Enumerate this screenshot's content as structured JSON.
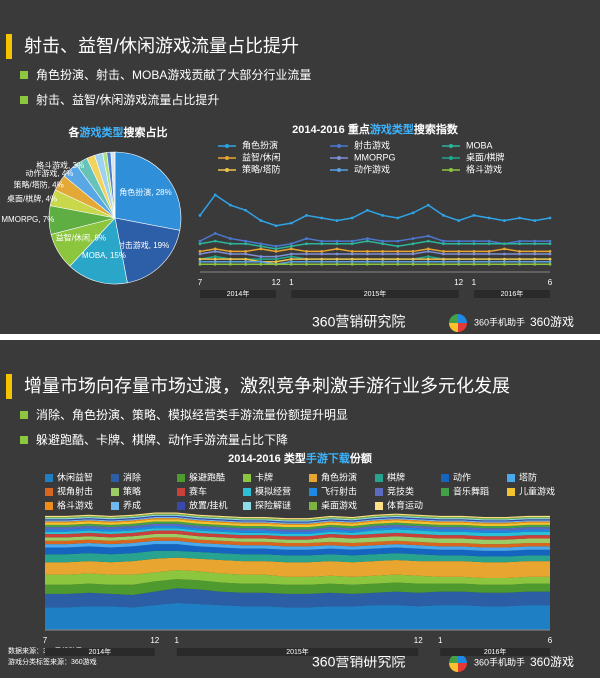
{
  "slides": [
    {
      "title": "射击、益智/休闲游戏流量占比提升",
      "bullets": [
        "角色扮演、射击、MOBA游戏贡献了大部分行业流量",
        "射击、益智/休闲游戏流量占比提升"
      ]
    },
    {
      "title": "增量市场向存量市场过渡，激烈竞争刺激手游行业多元化发展",
      "bullets": [
        "消除、角色扮演、策略、模拟经营类手游流量份额提升明显",
        "躲避跑酷、卡牌、棋牌、动作手游流量占比下降"
      ]
    }
  ],
  "chart_data": [
    {
      "type": "pie",
      "title_parts": [
        "各",
        "游戏类型",
        "搜索占比"
      ],
      "categories": [
        "角色扮演",
        "射击游戏",
        "MOBA",
        "益智/休闲",
        "MMORPG",
        "桌面/棋牌",
        "策略/塔防",
        "动作游戏",
        "格斗游戏",
        null,
        null,
        null,
        null,
        null
      ],
      "values": [
        28,
        19,
        15,
        9,
        7,
        4,
        4,
        4,
        3,
        2,
        2,
        1,
        1,
        1
      ],
      "value_labels": [
        "角色扮演, 28%",
        "射击游戏, 19%",
        "MOBA, 15%",
        "益智/休闲, 9%",
        "MMORPG, 7%",
        "桌面/棋牌, 4%",
        "策略/塔防, 4%",
        "动作游戏, 4%",
        "格斗游戏, 3%",
        null,
        null,
        null,
        null,
        null
      ],
      "colors": [
        "#2f8fd8",
        "#2d5ea8",
        "#2aa6c9",
        "#8cc63f",
        "#5fae43",
        "#c8d84a",
        "#e3a835",
        "#5aa7e6",
        "#67c3b9",
        "#f2d35c",
        "#9fd1f0",
        "#b0e07a",
        "#4e7fd1",
        "#d8e6f0"
      ]
    },
    {
      "type": "line",
      "title_parts": [
        "2014-2016 重点",
        "游戏类型",
        "搜索指数"
      ],
      "categories": [
        "7",
        null,
        null,
        null,
        null,
        "12",
        "1",
        null,
        null,
        null,
        null,
        null,
        null,
        null,
        null,
        null,
        null,
        "12",
        "1",
        null,
        null,
        null,
        null,
        "6"
      ],
      "years": [
        "2014年",
        "2015年",
        "2016年"
      ],
      "ylim": [
        0,
        35
      ],
      "series": [
        {
          "name": "角色扮演",
          "color": "#2fa3e6",
          "values": [
            22,
            30,
            26,
            24,
            20,
            18,
            19,
            22,
            21,
            20,
            21,
            24,
            22,
            21,
            23,
            26,
            22,
            20,
            22,
            21,
            20,
            21,
            20,
            21
          ]
        },
        {
          "name": "射击游戏",
          "color": "#4a78d0",
          "values": [
            12,
            15,
            13,
            12,
            11,
            10,
            11,
            13,
            12,
            12,
            12,
            13,
            12,
            12,
            13,
            14,
            12,
            12,
            12,
            12,
            11,
            12,
            12,
            12
          ]
        },
        {
          "name": "MOBA",
          "color": "#2bb59c",
          "values": [
            11,
            12,
            11,
            11,
            10,
            9,
            10,
            11,
            11,
            11,
            11,
            12,
            11,
            10,
            11,
            12,
            11,
            11,
            11,
            11,
            11,
            11,
            11,
            11
          ]
        },
        {
          "name": "益智/休闲",
          "color": "#e8a530",
          "values": [
            8,
            9,
            8,
            8,
            9,
            8,
            9,
            8,
            8,
            9,
            8,
            8,
            8,
            8,
            8,
            9,
            8,
            8,
            8,
            8,
            9,
            8,
            8,
            8
          ]
        },
        {
          "name": "MMORPG",
          "color": "#7d8fd6",
          "values": [
            7,
            8,
            7,
            7,
            6,
            6,
            7,
            7,
            7,
            7,
            7,
            7,
            7,
            7,
            7,
            8,
            7,
            7,
            7,
            7,
            7,
            7,
            7,
            7
          ]
        },
        {
          "name": "桌面/棋牌",
          "color": "#1fa88f",
          "values": [
            5,
            6,
            5,
            5,
            5,
            5,
            6,
            5,
            5,
            5,
            5,
            5,
            5,
            5,
            5,
            6,
            5,
            5,
            5,
            5,
            5,
            5,
            5,
            5
          ]
        },
        {
          "name": "策略/塔防",
          "color": "#f0c24a",
          "values": [
            5,
            5,
            5,
            5,
            4,
            4,
            5,
            5,
            5,
            5,
            5,
            5,
            5,
            5,
            5,
            5,
            5,
            5,
            5,
            5,
            5,
            5,
            5,
            5
          ]
        },
        {
          "name": "动作游戏",
          "color": "#5aa0e0",
          "values": [
            4,
            4,
            4,
            4,
            4,
            3,
            4,
            4,
            4,
            4,
            4,
            4,
            4,
            4,
            4,
            4,
            4,
            4,
            4,
            4,
            4,
            4,
            4,
            4
          ]
        },
        {
          "name": "格斗游戏",
          "color": "#8cc63f",
          "values": [
            3,
            3,
            3,
            3,
            3,
            3,
            3,
            3,
            3,
            3,
            3,
            3,
            3,
            3,
            3,
            3,
            3,
            3,
            3,
            3,
            3,
            3,
            3,
            3
          ]
        }
      ]
    },
    {
      "type": "area",
      "title_parts": [
        "2014-2016 类型",
        "手游下载",
        "份额"
      ],
      "categories": [
        "7",
        null,
        null,
        null,
        null,
        "12",
        "1",
        null,
        null,
        null,
        null,
        null,
        null,
        null,
        null,
        null,
        null,
        "12",
        "1",
        null,
        null,
        null,
        null,
        "6"
      ],
      "years": [
        "2014年",
        "2015年",
        "2016年"
      ],
      "ylim": [
        0,
        100
      ],
      "series": [
        {
          "name": "休闲益智",
          "color": "#1f7fc4",
          "values": [
            20,
            20,
            21,
            21,
            20,
            22,
            24,
            23,
            22,
            21,
            21,
            20,
            20,
            21,
            21,
            22,
            22,
            21,
            22,
            22,
            21,
            21,
            22,
            22
          ]
        },
        {
          "name": "消除",
          "color": "#2c5ea5",
          "values": [
            12,
            12,
            12,
            11,
            11,
            12,
            13,
            13,
            12,
            12,
            12,
            12,
            12,
            12,
            11,
            11,
            12,
            12,
            12,
            12,
            12,
            12,
            12,
            12
          ]
        },
        {
          "name": "躲避跑酷",
          "color": "#4f9a2f",
          "values": [
            8,
            8,
            8,
            8,
            9,
            9,
            8,
            8,
            8,
            8,
            8,
            8,
            8,
            8,
            8,
            8,
            8,
            8,
            7,
            7,
            7,
            7,
            7,
            7
          ]
        },
        {
          "name": "卡牌",
          "color": "#8cc63f",
          "values": [
            9,
            9,
            9,
            9,
            9,
            8,
            8,
            8,
            8,
            8,
            8,
            7,
            7,
            7,
            7,
            7,
            7,
            7,
            6,
            6,
            6,
            6,
            6,
            6
          ]
        },
        {
          "name": "角色扮演",
          "color": "#e8a530",
          "values": [
            11,
            11,
            11,
            11,
            12,
            12,
            11,
            11,
            12,
            12,
            12,
            13,
            13,
            13,
            13,
            13,
            13,
            13,
            14,
            14,
            14,
            14,
            14,
            14
          ]
        },
        {
          "name": "棋牌",
          "color": "#27a38f",
          "values": [
            7,
            7,
            7,
            7,
            7,
            7,
            6,
            6,
            6,
            6,
            6,
            6,
            6,
            6,
            6,
            6,
            6,
            6,
            5,
            5,
            5,
            5,
            5,
            5
          ]
        },
        {
          "name": "动作",
          "color": "#1565c0",
          "values": [
            6,
            6,
            6,
            6,
            6,
            6,
            6,
            5,
            5,
            5,
            5,
            5,
            5,
            5,
            5,
            5,
            5,
            5,
            5,
            5,
            5,
            5,
            5,
            5
          ]
        },
        {
          "name": "塔防",
          "color": "#4aa8ec",
          "values": [
            3,
            3,
            3,
            3,
            3,
            3,
            3,
            3,
            3,
            3,
            3,
            3,
            3,
            3,
            3,
            3,
            3,
            3,
            3,
            3,
            3,
            3,
            3,
            3
          ]
        },
        {
          "name": "视角射击",
          "color": "#d9661f",
          "values": [
            3,
            3,
            3,
            3,
            3,
            3,
            3,
            3,
            3,
            3,
            3,
            3,
            3,
            3,
            3,
            3,
            3,
            3,
            3,
            3,
            3,
            3,
            3,
            3
          ]
        },
        {
          "name": "策略",
          "color": "#9ccc65",
          "values": [
            3,
            3,
            3,
            3,
            3,
            3,
            3,
            3,
            3,
            3,
            3,
            3,
            3,
            4,
            4,
            4,
            4,
            4,
            4,
            4,
            4,
            4,
            4,
            4
          ]
        },
        {
          "name": "赛车",
          "color": "#c9413a",
          "values": [
            3,
            3,
            3,
            3,
            3,
            3,
            3,
            3,
            3,
            3,
            3,
            3,
            3,
            3,
            3,
            3,
            3,
            3,
            3,
            3,
            3,
            3,
            3,
            3
          ]
        },
        {
          "name": "模拟经营",
          "color": "#2cc0d6",
          "values": [
            2,
            2,
            2,
            2,
            2,
            2,
            2,
            2,
            2,
            2,
            2,
            2,
            2,
            2,
            2,
            3,
            3,
            3,
            3,
            3,
            3,
            3,
            3,
            3
          ]
        },
        {
          "name": "飞行射击",
          "color": "#1e88e5",
          "values": [
            2,
            2,
            2,
            2,
            2,
            2,
            2,
            2,
            2,
            2,
            2,
            2,
            2,
            2,
            2,
            2,
            2,
            2,
            2,
            2,
            2,
            2,
            2,
            2
          ]
        },
        {
          "name": "竞技类",
          "color": "#5c6bc0",
          "values": [
            2,
            2,
            2,
            2,
            2,
            2,
            2,
            2,
            2,
            2,
            2,
            2,
            2,
            2,
            2,
            2,
            2,
            2,
            2,
            2,
            2,
            2,
            2,
            2
          ]
        },
        {
          "name": "音乐舞蹈",
          "color": "#43a047",
          "values": [
            2,
            2,
            2,
            2,
            2,
            2,
            2,
            2,
            2,
            2,
            2,
            2,
            2,
            2,
            2,
            2,
            2,
            2,
            2,
            2,
            2,
            2,
            2,
            2
          ]
        },
        {
          "name": "儿童游戏",
          "color": "#f4c430",
          "values": [
            2,
            2,
            2,
            2,
            2,
            2,
            2,
            2,
            2,
            2,
            2,
            2,
            2,
            2,
            2,
            2,
            2,
            2,
            2,
            2,
            2,
            2,
            2,
            2
          ]
        },
        {
          "name": "格斗游戏",
          "color": "#f08c1a",
          "values": [
            1,
            1,
            1,
            1,
            1,
            1,
            1,
            1,
            1,
            1,
            1,
            1,
            1,
            1,
            1,
            1,
            1,
            1,
            1,
            1,
            1,
            1,
            1,
            1
          ]
        },
        {
          "name": "养成",
          "color": "#6fb8f0",
          "values": [
            1,
            1,
            1,
            1,
            1,
            1,
            1,
            1,
            1,
            1,
            1,
            1,
            1,
            1,
            1,
            1,
            1,
            1,
            1,
            1,
            1,
            1,
            1,
            1
          ]
        },
        {
          "name": "放置/挂机",
          "color": "#3949ab",
          "values": [
            1,
            1,
            1,
            1,
            1,
            1,
            1,
            1,
            1,
            1,
            1,
            1,
            1,
            1,
            1,
            1,
            1,
            1,
            1,
            1,
            1,
            1,
            1,
            1
          ]
        },
        {
          "name": "探险解谜",
          "color": "#8fdce8",
          "values": [
            1,
            1,
            1,
            1,
            1,
            1,
            1,
            1,
            1,
            1,
            1,
            1,
            1,
            1,
            1,
            1,
            1,
            1,
            1,
            1,
            1,
            1,
            1,
            1
          ]
        },
        {
          "name": "桌面游戏",
          "color": "#7cb342",
          "values": [
            1,
            1,
            1,
            1,
            1,
            1,
            1,
            1,
            1,
            1,
            1,
            1,
            1,
            1,
            1,
            1,
            1,
            1,
            1,
            1,
            1,
            1,
            1,
            1
          ]
        },
        {
          "name": "体育运动",
          "color": "#ffe08a",
          "values": [
            1,
            1,
            1,
            1,
            1,
            1,
            1,
            1,
            1,
            1,
            1,
            1,
            1,
            1,
            1,
            1,
            1,
            1,
            1,
            1,
            1,
            1,
            1,
            1
          ]
        }
      ]
    }
  ],
  "footer": {
    "brand": "360营销研究院",
    "assistant": "360手机助手",
    "games": "360游戏",
    "sources": [
      "数据来源：360手机助手",
      "游戏分类标签来源：360游戏"
    ]
  }
}
